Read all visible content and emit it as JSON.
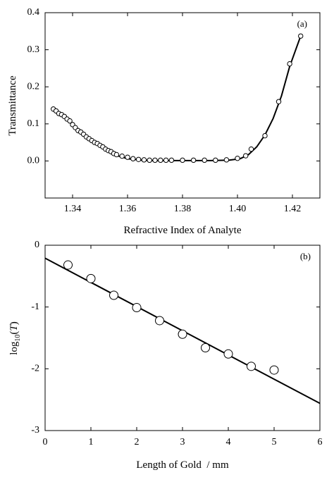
{
  "chart_data": [
    {
      "type": "scatter",
      "panel_label": "(a)",
      "xlabel": "Refractive Index of Analyte",
      "ylabel": "Transmittance",
      "xlim": [
        1.33,
        1.43
      ],
      "ylim": [
        -0.1,
        0.4
      ],
      "xticks": [
        1.34,
        1.36,
        1.38,
        1.4,
        1.42
      ],
      "xtick_labels": [
        "1.34",
        "1.36",
        "1.38",
        "1.40",
        "1.42"
      ],
      "yticks": [
        0.0,
        0.1,
        0.2,
        0.3,
        0.4
      ],
      "ytick_labels": [
        "0.0",
        "0.1",
        "0.2",
        "0.3",
        "0.4"
      ],
      "grid": false,
      "line": {
        "x": [
          1.333,
          1.336,
          1.34,
          1.344,
          1.348,
          1.352,
          1.356,
          1.36,
          1.365,
          1.37,
          1.38,
          1.39,
          1.397,
          1.401,
          1.404,
          1.407,
          1.41,
          1.413,
          1.416,
          1.419,
          1.423
        ],
        "y": [
          0.137,
          0.125,
          0.1,
          0.074,
          0.05,
          0.03,
          0.015,
          0.006,
          0.002,
          0.001,
          0.001,
          0.001,
          0.002,
          0.006,
          0.017,
          0.038,
          0.07,
          0.115,
          0.175,
          0.255,
          0.337
        ]
      },
      "points": {
        "x": [
          1.333,
          1.334,
          1.335,
          1.336,
          1.337,
          1.338,
          1.339,
          1.34,
          1.341,
          1.342,
          1.343,
          1.344,
          1.345,
          1.346,
          1.347,
          1.348,
          1.349,
          1.35,
          1.351,
          1.352,
          1.353,
          1.354,
          1.355,
          1.356,
          1.358,
          1.36,
          1.362,
          1.364,
          1.366,
          1.368,
          1.37,
          1.372,
          1.374,
          1.376,
          1.38,
          1.384,
          1.388,
          1.392,
          1.396,
          1.4,
          1.403,
          1.405,
          1.41,
          1.415,
          1.419,
          1.423
        ],
        "y": [
          0.14,
          0.135,
          0.128,
          0.125,
          0.12,
          0.113,
          0.108,
          0.098,
          0.09,
          0.082,
          0.078,
          0.072,
          0.065,
          0.06,
          0.055,
          0.05,
          0.047,
          0.042,
          0.038,
          0.032,
          0.028,
          0.025,
          0.02,
          0.017,
          0.013,
          0.01,
          0.006,
          0.004,
          0.003,
          0.002,
          0.002,
          0.002,
          0.002,
          0.002,
          0.002,
          0.002,
          0.002,
          0.002,
          0.003,
          0.007,
          0.014,
          0.032,
          0.068,
          0.16,
          0.262,
          0.337
        ]
      }
    },
    {
      "type": "scatter",
      "panel_label": "(b)",
      "xlabel": "Length of Gold  / mm",
      "ylabel_main": "log",
      "ylabel_sub": "10",
      "ylabel_arg_open": "(",
      "ylabel_arg": "T",
      "ylabel_arg_close": ")",
      "xlim": [
        0,
        6
      ],
      "ylim": [
        -3,
        0
      ],
      "xticks": [
        0,
        1,
        2,
        3,
        4,
        5,
        6
      ],
      "xtick_labels": [
        "0",
        "1",
        "2",
        "3",
        "4",
        "5",
        "6"
      ],
      "yticks": [
        0,
        -1,
        -2,
        -3
      ],
      "ytick_labels": [
        "0",
        "-1",
        "-2",
        "-3"
      ],
      "grid": false,
      "points": {
        "x": [
          0.5,
          1.0,
          1.5,
          2.0,
          2.5,
          3.0,
          3.5,
          4.0,
          4.5,
          5.0
        ],
        "y": [
          -0.32,
          -0.54,
          -0.81,
          -1.01,
          -1.22,
          -1.44,
          -1.66,
          -1.76,
          -1.96,
          -2.02
        ]
      },
      "fit_line": {
        "x": [
          0,
          6
        ],
        "y": [
          -0.21,
          -2.56
        ]
      }
    }
  ]
}
